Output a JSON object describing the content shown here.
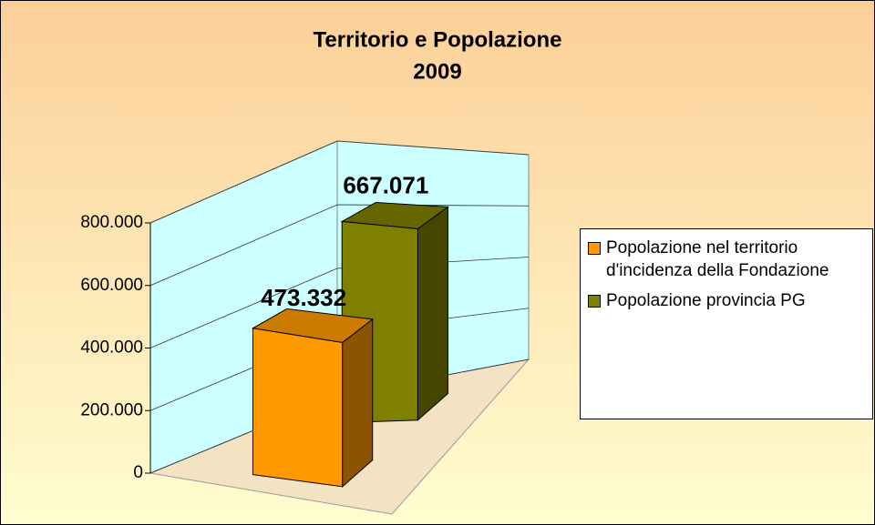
{
  "chart_data": {
    "type": "bar3d",
    "title": "Territorio e Popolazione",
    "subtitle": "2009",
    "series": [
      {
        "name": "Popolazione nel territorio d'incidenza della Fondazione",
        "color": "#ff9900",
        "values": [
          473332
        ],
        "value_labels": [
          "473.332"
        ]
      },
      {
        "name": "Popolazione provincia PG",
        "color": "#808000",
        "values": [
          667071
        ],
        "value_labels": [
          "667.071"
        ]
      }
    ],
    "ylim": [
      0,
      800000
    ],
    "yticks": [
      0,
      {
        "value": 200000,
        "label": "200.000"
      },
      {
        "value": 400000,
        "label": "400.000"
      },
      {
        "value": 600000,
        "label": "600.000"
      },
      {
        "value": 800000,
        "label": "800.000"
      }
    ],
    "grid": true,
    "legend": "right"
  }
}
